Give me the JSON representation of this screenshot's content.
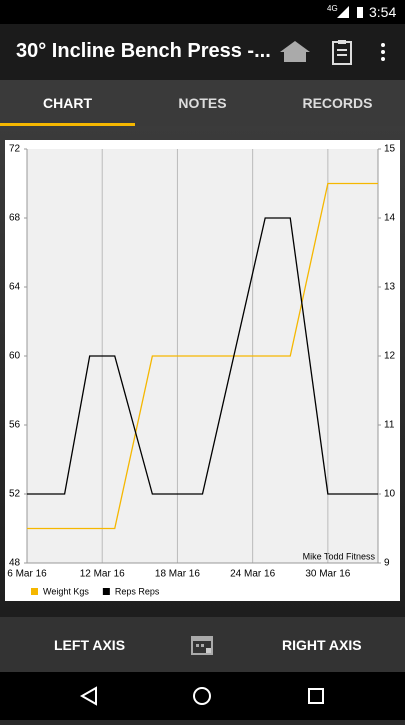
{
  "status_bar": {
    "network": "4G",
    "time": "3:54"
  },
  "app_bar": {
    "title": "30° Incline Bench Press -..."
  },
  "tabs": [
    "CHART",
    "NOTES",
    "RECORDS"
  ],
  "bottom_bar": {
    "left": "LEFT AXIS",
    "right": "RIGHT AXIS"
  },
  "chart_data": {
    "type": "line",
    "annotation": "Mike Todd Fitness",
    "xlim": [
      "2016-03-06",
      "2016-04-03"
    ],
    "xticks": [
      {
        "value": "2016-03-06",
        "label": "6 Mar 16"
      },
      {
        "value": "2016-03-12",
        "label": "12 Mar 16"
      },
      {
        "value": "2016-03-18",
        "label": "18 Mar 16"
      },
      {
        "value": "2016-03-24",
        "label": "24 Mar 16"
      },
      {
        "value": "2016-03-30",
        "label": "30 Mar 16"
      }
    ],
    "ylim": [
      48,
      72
    ],
    "yticks": [
      48,
      52,
      56,
      60,
      64,
      68,
      72
    ],
    "y2lim": [
      9,
      15
    ],
    "y2ticks": [
      9,
      10,
      11,
      12,
      13,
      14,
      15
    ],
    "grid": true,
    "series": [
      {
        "name": "Weight Kgs",
        "color": "#f5b700",
        "axis": "y2",
        "x": [
          "2016-03-06",
          "2016-03-13",
          "2016-03-16",
          "2016-03-27",
          "2016-03-30",
          "2016-04-03"
        ],
        "values": [
          9.5,
          9.5,
          12,
          12,
          14.5,
          14.5
        ]
      },
      {
        "name": "Reps Reps",
        "color": "#000000",
        "x": [
          "2016-03-06",
          "2016-03-09",
          "2016-03-11",
          "2016-03-13",
          "2016-03-16",
          "2016-03-20",
          "2016-03-25",
          "2016-03-27",
          "2016-03-30",
          "2016-04-03"
        ],
        "values": [
          52,
          52,
          60,
          60,
          52,
          52,
          68,
          68,
          52,
          52
        ]
      }
    ]
  }
}
